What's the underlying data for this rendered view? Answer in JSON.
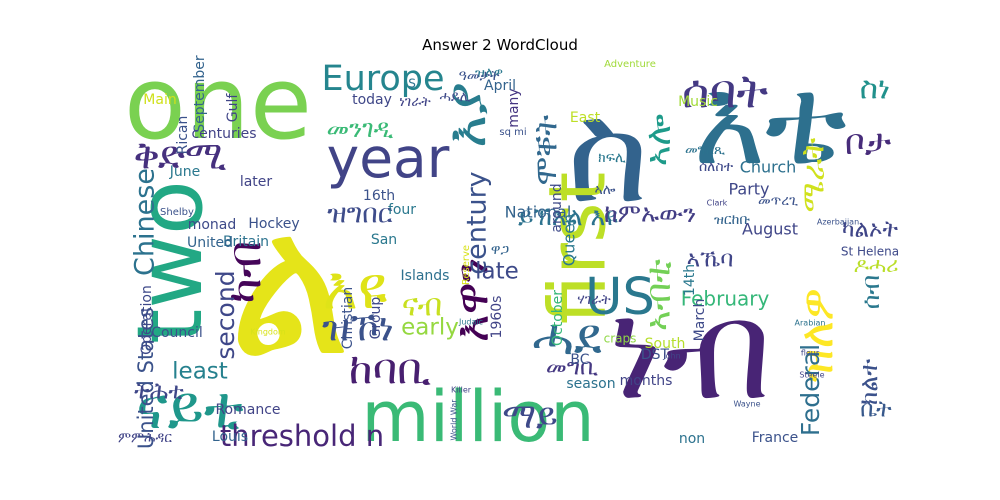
{
  "chart_data": {
    "type": "wordcloud",
    "title": "Answer 2 WordCloud",
    "background": "#ffffff",
    "colormap": "viridis",
    "words": [
      {
        "text": "ል",
        "weight": 100,
        "color": "#e5e419"
      },
      {
        "text": "ስ",
        "weight": 72,
        "color": "#33638d"
      },
      {
        "text": "ነብ",
        "weight": 70,
        "color": "#482475"
      },
      {
        "text": "እቴ",
        "weight": 62,
        "color": "#2d708e"
      },
      {
        "text": "one",
        "weight": 52,
        "color": "#7ad151"
      },
      {
        "text": "two",
        "weight": 46,
        "color": "#22a884"
      },
      {
        "text": "first",
        "weight": 40,
        "color": "#bddf26"
      },
      {
        "text": "million",
        "weight": 36,
        "color": "#3aba76"
      },
      {
        "text": "ናይቲ",
        "weight": 30,
        "color": "#1f978b"
      },
      {
        "text": "year",
        "weight": 28,
        "color": "#414487"
      },
      {
        "text": "እዩ",
        "weight": 30,
        "color": "#dfe318"
      },
      {
        "text": "እያ",
        "weight": 28,
        "color": "#287d8e"
      },
      {
        "text": "እዋን",
        "weight": 24,
        "color": "#440154"
      },
      {
        "text": "ዝለዎ",
        "weight": 24,
        "color": "#fde725"
      },
      {
        "text": "ሰባት",
        "weight": 24,
        "color": "#443983"
      },
      {
        "text": "ሓደ",
        "weight": 26,
        "color": "#31688e"
      },
      {
        "text": "US",
        "weight": 26,
        "color": "#2a788e"
      },
      {
        "text": "ከባቢ",
        "weight": 22,
        "color": "#481f70"
      },
      {
        "text": "ዝኾነ",
        "weight": 20,
        "color": "#3b528b"
      },
      {
        "text": "ቅድሚ",
        "weight": 20,
        "color": "#46307e"
      },
      {
        "text": "ካብ",
        "weight": 24,
        "color": "#450559"
      },
      {
        "text": "ኣብቲ",
        "weight": 18,
        "color": "#73d056"
      },
      {
        "text": "ኣሎ",
        "weight": 18,
        "color": "#1e9b8a"
      },
      {
        "text": "Europe",
        "weight": 18,
        "color": "#25858e"
      },
      {
        "text": "ማይ",
        "weight": 18,
        "color": "#3e4989"
      },
      {
        "text": "ቦታ",
        "weight": 18,
        "color": "#472c7a"
      },
      {
        "text": "threshold n",
        "weight": 15,
        "color": "#482677"
      },
      {
        "text": "ስነ",
        "weight": 16,
        "color": "#21918c"
      },
      {
        "text": "ሜራት",
        "weight": 16,
        "color": "#d0e11c"
      },
      {
        "text": "ናብ",
        "weight": 16,
        "color": "#c8e020"
      },
      {
        "text": "ሞቐት",
        "weight": 16,
        "color": "#31688e"
      },
      {
        "text": "Chinese",
        "weight": 14,
        "color": "#2c728e"
      },
      {
        "text": "century",
        "weight": 14,
        "color": "#3b528b"
      },
      {
        "text": "second",
        "weight": 13,
        "color": "#3f4889"
      },
      {
        "text": "Federal",
        "weight": 13,
        "color": "#2e6f8e"
      },
      {
        "text": "ዝግበር",
        "weight": 14,
        "color": "#3e4c8a"
      },
      {
        "text": "መንገዲ",
        "weight": 13,
        "color": "#3aba76"
      },
      {
        "text": "ይኽእል እዩ",
        "weight": 13,
        "color": "#2c728e"
      },
      {
        "text": "ከምኡውን",
        "weight": 13,
        "color": "#433e85"
      },
      {
        "text": "ሰብ",
        "weight": 13,
        "color": "#2a788e"
      },
      {
        "text": "ክልተ",
        "weight": 13,
        "color": "#3b518b"
      },
      {
        "text": "United States",
        "weight": 11,
        "color": "#3b528b"
      },
      {
        "text": "late",
        "weight": 12,
        "color": "#3e4a89"
      },
      {
        "text": "early",
        "weight": 12,
        "color": "#95d840"
      },
      {
        "text": "least",
        "weight": 12,
        "color": "#26818e"
      },
      {
        "text": "መግቢ",
        "weight": 12,
        "color": "#453882"
      },
      {
        "text": "ካልኦት",
        "weight": 12,
        "color": "#404688"
      },
      {
        "text": "ኣኼባ",
        "weight": 12,
        "color": "#404588"
      },
      {
        "text": "ትሕቲ",
        "weight": 12,
        "color": "#3f4788"
      },
      {
        "text": "ቤት",
        "weight": 12,
        "color": "#38598c"
      },
      {
        "text": "ዶሓሪ",
        "weight": 11,
        "color": "#bade28"
      },
      {
        "text": "February",
        "weight": 10,
        "color": "#35b779"
      },
      {
        "text": "National",
        "weight": 8,
        "color": "#33638d"
      },
      {
        "text": "Queen",
        "weight": 8,
        "color": "#2a788e"
      },
      {
        "text": "Church",
        "weight": 8,
        "color": "#2d708e"
      },
      {
        "text": "August",
        "weight": 8,
        "color": "#404688"
      },
      {
        "text": "Party",
        "weight": 8,
        "color": "#3f4788"
      },
      {
        "text": "Music",
        "weight": 7,
        "color": "#a2da37"
      },
      {
        "text": "September",
        "weight": 7,
        "color": "#33638d"
      },
      {
        "text": "Gulf",
        "weight": 7,
        "color": "#404588"
      },
      {
        "text": "Main",
        "weight": 7,
        "color": "#d0e11c"
      },
      {
        "text": "Rican",
        "weight": 7,
        "color": "#3b528b"
      },
      {
        "text": "centuries",
        "weight": 7,
        "color": "#414287"
      },
      {
        "text": "June",
        "weight": 7,
        "color": "#2a788e"
      },
      {
        "text": "later",
        "weight": 7,
        "color": "#414487"
      },
      {
        "text": "Hockey",
        "weight": 7,
        "color": "#3b528b"
      },
      {
        "text": "Britain",
        "weight": 7,
        "color": "#2c728e"
      },
      {
        "text": "United",
        "weight": 7,
        "color": "#33638d"
      },
      {
        "text": "monad",
        "weight": 7,
        "color": "#3e4a89"
      },
      {
        "text": "16th",
        "weight": 7,
        "color": "#3b528b"
      },
      {
        "text": "four",
        "weight": 7,
        "color": "#2a788e"
      },
      {
        "text": "today",
        "weight": 7,
        "color": "#3f4788"
      },
      {
        "text": "many",
        "weight": 7,
        "color": "#453581"
      },
      {
        "text": "April",
        "weight": 7,
        "color": "#33638d"
      },
      {
        "text": "Christian",
        "weight": 7,
        "color": "#3b528b"
      },
      {
        "text": "Group",
        "weight": 7,
        "color": "#3e4989"
      },
      {
        "text": "Islands",
        "weight": 7,
        "color": "#2d708e"
      },
      {
        "text": "San",
        "weight": 7,
        "color": "#2a788e"
      },
      {
        "text": "1960s",
        "weight": 7,
        "color": "#414487"
      },
      {
        "text": "around",
        "weight": 7,
        "color": "#3e4a89"
      },
      {
        "text": "October",
        "weight": 7,
        "color": "#35b779"
      },
      {
        "text": "BC",
        "weight": 7,
        "color": "#3b528b"
      },
      {
        "text": "season",
        "weight": 7,
        "color": "#2c728e"
      },
      {
        "text": "months",
        "weight": 7,
        "color": "#414487"
      },
      {
        "text": "March",
        "weight": 7,
        "color": "#3e4a89"
      },
      {
        "text": "14th",
        "weight": 7,
        "color": "#2a788e"
      },
      {
        "text": "DST",
        "weight": 7,
        "color": "#3b528b"
      },
      {
        "text": "South",
        "weight": 7,
        "color": "#b5de2b"
      },
      {
        "text": "France",
        "weight": 7,
        "color": "#3b528b"
      },
      {
        "text": "non",
        "weight": 7,
        "color": "#2c728e"
      },
      {
        "text": "Council",
        "weight": 7,
        "color": "#3b528b"
      },
      {
        "text": "Operation",
        "weight": 7,
        "color": "#3e4989"
      },
      {
        "text": "Romance",
        "weight": 7,
        "color": "#414487"
      },
      {
        "text": "Louis",
        "weight": 7,
        "color": "#33638d"
      },
      {
        "text": "East",
        "weight": 7,
        "color": "#bddf26"
      },
      {
        "text": "St Helena",
        "weight": 6,
        "color": "#3e4989"
      },
      {
        "text": "Shelby",
        "weight": 5,
        "color": "#3b528b"
      },
      {
        "text": "Adventure",
        "weight": 5,
        "color": "#a0da39"
      },
      {
        "text": "sq mi",
        "weight": 5,
        "color": "#3b528b"
      },
      {
        "text": "craps",
        "weight": 6,
        "color": "#8fd744"
      },
      {
        "text": "Clark",
        "weight": 4,
        "color": "#414487"
      },
      {
        "text": "Killer",
        "weight": 4,
        "color": "#414487"
      },
      {
        "text": "World War",
        "weight": 4,
        "color": "#3b528b"
      },
      {
        "text": "Judaic",
        "weight": 4,
        "color": "#2a788e"
      },
      {
        "text": "John",
        "weight": 4,
        "color": "#404588"
      },
      {
        "text": "Wayne",
        "weight": 4,
        "color": "#3b528b"
      },
      {
        "text": "Steele",
        "weight": 4,
        "color": "#414487"
      },
      {
        "text": "Arabian",
        "weight": 4,
        "color": "#2c728e"
      },
      {
        "text": "Azerbaijan",
        "weight": 4,
        "color": "#3b528b"
      },
      {
        "text": "Reserve",
        "weight": 5,
        "color": "#d8e219"
      },
      {
        "text": "Kingdom",
        "weight": 4,
        "color": "#d8e219"
      },
      {
        "text": "fleur",
        "weight": 4,
        "color": "#3e4989"
      },
      {
        "text": "S",
        "weight": 6,
        "color": "#2c728e"
      },
      {
        "text": "ዝለዎ",
        "weight": 7,
        "color": "#2a788e"
      },
      {
        "text": "ዓመታት",
        "weight": 7,
        "color": "#3b528b"
      },
      {
        "text": "ሓይሊ",
        "weight": 7,
        "color": "#3e4a89"
      },
      {
        "text": "ነገራት",
        "weight": 7,
        "color": "#414487"
      },
      {
        "text": "መግለጺ",
        "weight": 7,
        "color": "#2c728e"
      },
      {
        "text": "መጥረጊ",
        "weight": 7,
        "color": "#3b528b"
      },
      {
        "text": "ዝርከቡ",
        "weight": 7,
        "color": "#33638d"
      },
      {
        "text": "ምምሕዳር",
        "weight": 7,
        "color": "#414487"
      },
      {
        "text": "ሰለስተ",
        "weight": 7,
        "color": "#3e4989"
      },
      {
        "text": "ክፍሊ",
        "weight": 7,
        "color": "#2a788e"
      },
      {
        "text": "ኣሎ",
        "weight": 7,
        "color": "#3b528b"
      },
      {
        "text": "ሃገራት",
        "weight": 7,
        "color": "#414487"
      },
      {
        "text": "ዋጋ",
        "weight": 7,
        "color": "#33638d"
      }
    ]
  }
}
